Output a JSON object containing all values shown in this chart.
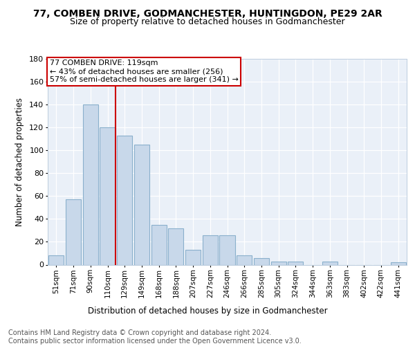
{
  "title1": "77, COMBEN DRIVE, GODMANCHESTER, HUNTINGDON, PE29 2AR",
  "title2": "Size of property relative to detached houses in Godmanchester",
  "xlabel": "Distribution of detached houses by size in Godmanchester",
  "ylabel": "Number of detached properties",
  "categories": [
    "51sqm",
    "71sqm",
    "90sqm",
    "110sqm",
    "129sqm",
    "149sqm",
    "168sqm",
    "188sqm",
    "207sqm",
    "227sqm",
    "246sqm",
    "266sqm",
    "285sqm",
    "305sqm",
    "324sqm",
    "344sqm",
    "363sqm",
    "383sqm",
    "402sqm",
    "422sqm",
    "441sqm"
  ],
  "values": [
    8,
    57,
    140,
    120,
    113,
    105,
    35,
    32,
    13,
    26,
    26,
    8,
    6,
    3,
    3,
    0,
    3,
    0,
    0,
    0,
    2
  ],
  "bar_color": "#c8d8ea",
  "bar_edgecolor": "#8ab0cc",
  "vline_color": "#cc0000",
  "vline_x_index": 3,
  "annotation_line1": "77 COMBEN DRIVE: 119sqm",
  "annotation_line2": "← 43% of detached houses are smaller (256)",
  "annotation_line3": "57% of semi-detached houses are larger (341) →",
  "annotation_boxcolor": "white",
  "annotation_edgecolor": "#cc0000",
  "footnote": "Contains HM Land Registry data © Crown copyright and database right 2024.\nContains public sector information licensed under the Open Government Licence v3.0.",
  "ylim": [
    0,
    180
  ],
  "yticks": [
    0,
    20,
    40,
    60,
    80,
    100,
    120,
    140,
    160,
    180
  ],
  "bg_color": "#eaf0f8",
  "fig_bg_color": "#ffffff",
  "grid_color": "#d0dae8"
}
